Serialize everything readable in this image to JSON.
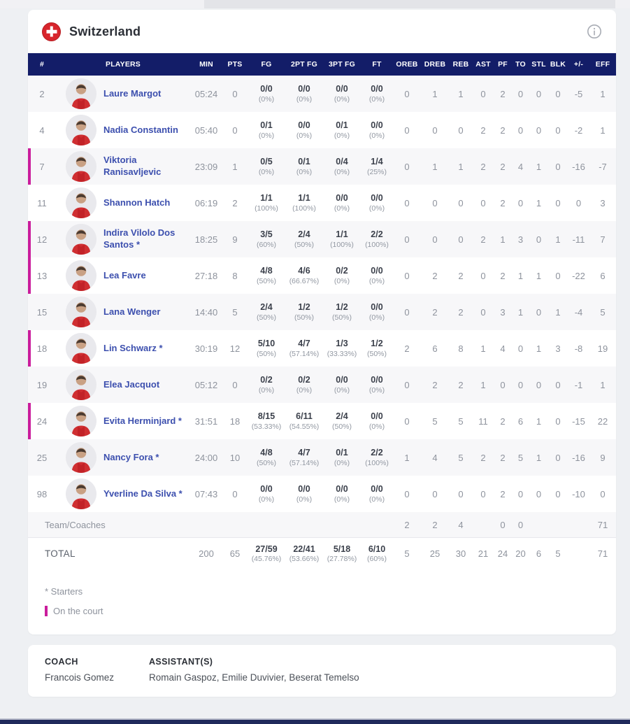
{
  "team_header": {
    "name": "Switzerland",
    "flag_icon": "swiss-flag",
    "info_icon": "info-circle"
  },
  "table": {
    "columns": [
      "#",
      "PLAYERS",
      "MIN",
      "PTS",
      "FG",
      "2PT FG",
      "3PT FG",
      "FT",
      "OREB",
      "DREB",
      "REB",
      "AST",
      "PF",
      "TO",
      "STL",
      "BLK",
      "+/-",
      "EFF"
    ],
    "rows": [
      {
        "num": "2",
        "name": "Laure Margot",
        "starter": false,
        "on_court": false,
        "min": "05:24",
        "pts": "0",
        "fg": "0/0",
        "fg_pct": "(0%)",
        "fg2": "0/0",
        "fg2_pct": "(0%)",
        "fg3": "0/0",
        "fg3_pct": "(0%)",
        "ft": "0/0",
        "ft_pct": "(0%)",
        "oreb": "0",
        "dreb": "1",
        "reb": "1",
        "ast": "0",
        "pf": "2",
        "to": "0",
        "stl": "0",
        "blk": "0",
        "pm": "-5",
        "eff": "1"
      },
      {
        "num": "4",
        "name": "Nadia Constantin",
        "starter": false,
        "on_court": false,
        "min": "05:40",
        "pts": "0",
        "fg": "0/1",
        "fg_pct": "(0%)",
        "fg2": "0/0",
        "fg2_pct": "(0%)",
        "fg3": "0/1",
        "fg3_pct": "(0%)",
        "ft": "0/0",
        "ft_pct": "(0%)",
        "oreb": "0",
        "dreb": "0",
        "reb": "0",
        "ast": "2",
        "pf": "2",
        "to": "0",
        "stl": "0",
        "blk": "0",
        "pm": "-2",
        "eff": "1"
      },
      {
        "num": "7",
        "name": "Viktoria Ranisavljevic",
        "starter": false,
        "on_court": true,
        "min": "23:09",
        "pts": "1",
        "fg": "0/5",
        "fg_pct": "(0%)",
        "fg2": "0/1",
        "fg2_pct": "(0%)",
        "fg3": "0/4",
        "fg3_pct": "(0%)",
        "ft": "1/4",
        "ft_pct": "(25%)",
        "oreb": "0",
        "dreb": "1",
        "reb": "1",
        "ast": "2",
        "pf": "2",
        "to": "4",
        "stl": "1",
        "blk": "0",
        "pm": "-16",
        "eff": "-7"
      },
      {
        "num": "11",
        "name": "Shannon Hatch",
        "starter": false,
        "on_court": false,
        "min": "06:19",
        "pts": "2",
        "fg": "1/1",
        "fg_pct": "(100%)",
        "fg2": "1/1",
        "fg2_pct": "(100%)",
        "fg3": "0/0",
        "fg3_pct": "(0%)",
        "ft": "0/0",
        "ft_pct": "(0%)",
        "oreb": "0",
        "dreb": "0",
        "reb": "0",
        "ast": "0",
        "pf": "2",
        "to": "0",
        "stl": "1",
        "blk": "0",
        "pm": "0",
        "eff": "3"
      },
      {
        "num": "12",
        "name": "Indira Vilolo Dos Santos",
        "starter": true,
        "on_court": true,
        "min": "18:25",
        "pts": "9",
        "fg": "3/5",
        "fg_pct": "(60%)",
        "fg2": "2/4",
        "fg2_pct": "(50%)",
        "fg3": "1/1",
        "fg3_pct": "(100%)",
        "ft": "2/2",
        "ft_pct": "(100%)",
        "oreb": "0",
        "dreb": "0",
        "reb": "0",
        "ast": "2",
        "pf": "1",
        "to": "3",
        "stl": "0",
        "blk": "1",
        "pm": "-11",
        "eff": "7"
      },
      {
        "num": "13",
        "name": "Lea Favre",
        "starter": false,
        "on_court": true,
        "min": "27:18",
        "pts": "8",
        "fg": "4/8",
        "fg_pct": "(50%)",
        "fg2": "4/6",
        "fg2_pct": "(66.67%)",
        "fg3": "0/2",
        "fg3_pct": "(0%)",
        "ft": "0/0",
        "ft_pct": "(0%)",
        "oreb": "0",
        "dreb": "2",
        "reb": "2",
        "ast": "0",
        "pf": "2",
        "to": "1",
        "stl": "1",
        "blk": "0",
        "pm": "-22",
        "eff": "6"
      },
      {
        "num": "15",
        "name": "Lana Wenger",
        "starter": false,
        "on_court": false,
        "min": "14:40",
        "pts": "5",
        "fg": "2/4",
        "fg_pct": "(50%)",
        "fg2": "1/2",
        "fg2_pct": "(50%)",
        "fg3": "1/2",
        "fg3_pct": "(50%)",
        "ft": "0/0",
        "ft_pct": "(0%)",
        "oreb": "0",
        "dreb": "2",
        "reb": "2",
        "ast": "0",
        "pf": "3",
        "to": "1",
        "stl": "0",
        "blk": "1",
        "pm": "-4",
        "eff": "5"
      },
      {
        "num": "18",
        "name": "Lin Schwarz",
        "starter": true,
        "on_court": true,
        "min": "30:19",
        "pts": "12",
        "fg": "5/10",
        "fg_pct": "(50%)",
        "fg2": "4/7",
        "fg2_pct": "(57.14%)",
        "fg3": "1/3",
        "fg3_pct": "(33.33%)",
        "ft": "1/2",
        "ft_pct": "(50%)",
        "oreb": "2",
        "dreb": "6",
        "reb": "8",
        "ast": "1",
        "pf": "4",
        "to": "0",
        "stl": "1",
        "blk": "3",
        "pm": "-8",
        "eff": "19"
      },
      {
        "num": "19",
        "name": "Elea Jacquot",
        "starter": false,
        "on_court": false,
        "min": "05:12",
        "pts": "0",
        "fg": "0/2",
        "fg_pct": "(0%)",
        "fg2": "0/2",
        "fg2_pct": "(0%)",
        "fg3": "0/0",
        "fg3_pct": "(0%)",
        "ft": "0/0",
        "ft_pct": "(0%)",
        "oreb": "0",
        "dreb": "2",
        "reb": "2",
        "ast": "1",
        "pf": "0",
        "to": "0",
        "stl": "0",
        "blk": "0",
        "pm": "-1",
        "eff": "1"
      },
      {
        "num": "24",
        "name": "Evita Herminjard",
        "starter": true,
        "on_court": true,
        "min": "31:51",
        "pts": "18",
        "fg": "8/15",
        "fg_pct": "(53.33%)",
        "fg2": "6/11",
        "fg2_pct": "(54.55%)",
        "fg3": "2/4",
        "fg3_pct": "(50%)",
        "ft": "0/0",
        "ft_pct": "(0%)",
        "oreb": "0",
        "dreb": "5",
        "reb": "5",
        "ast": "11",
        "pf": "2",
        "to": "6",
        "stl": "1",
        "blk": "0",
        "pm": "-15",
        "eff": "22"
      },
      {
        "num": "25",
        "name": "Nancy Fora",
        "starter": true,
        "on_court": false,
        "min": "24:00",
        "pts": "10",
        "fg": "4/8",
        "fg_pct": "(50%)",
        "fg2": "4/7",
        "fg2_pct": "(57.14%)",
        "fg3": "0/1",
        "fg3_pct": "(0%)",
        "ft": "2/2",
        "ft_pct": "(100%)",
        "oreb": "1",
        "dreb": "4",
        "reb": "5",
        "ast": "2",
        "pf": "2",
        "to": "5",
        "stl": "1",
        "blk": "0",
        "pm": "-16",
        "eff": "9"
      },
      {
        "num": "98",
        "name": "Yverline Da Silva",
        "starter": true,
        "on_court": false,
        "min": "07:43",
        "pts": "0",
        "fg": "0/0",
        "fg_pct": "(0%)",
        "fg2": "0/0",
        "fg2_pct": "(0%)",
        "fg3": "0/0",
        "fg3_pct": "(0%)",
        "ft": "0/0",
        "ft_pct": "(0%)",
        "oreb": "0",
        "dreb": "0",
        "reb": "0",
        "ast": "0",
        "pf": "2",
        "to": "0",
        "stl": "0",
        "blk": "0",
        "pm": "-10",
        "eff": "0"
      }
    ],
    "team_row": {
      "label": "Team/Coaches",
      "oreb": "2",
      "dreb": "2",
      "reb": "4",
      "ast": "",
      "pf": "0",
      "to": "0",
      "stl": "",
      "blk": "",
      "pm": "",
      "eff": "71"
    },
    "total_row": {
      "label": "TOTAL",
      "min": "200",
      "pts": "65",
      "fg": "27/59",
      "fg_pct": "(45.76%)",
      "fg2": "22/41",
      "fg2_pct": "(53.66%)",
      "fg3": "5/18",
      "fg3_pct": "(27.78%)",
      "ft": "6/10",
      "ft_pct": "(60%)",
      "oreb": "5",
      "dreb": "25",
      "reb": "30",
      "ast": "21",
      "pf": "24",
      "to": "20",
      "stl": "6",
      "blk": "5",
      "pm": "",
      "eff": "71"
    }
  },
  "legend": {
    "starters": "* Starters",
    "on_court": "On the court"
  },
  "staff": {
    "coach_label": "COACH",
    "coach_name": "Francois Gomez",
    "assistants_label": "ASSISTANT(S)",
    "assistants_names": "Romain Gaspoz, Emilie Duvivier, Beserat Temelso"
  },
  "colors": {
    "header_navy": "#131d68",
    "on_court_pink": "#ca1d9c",
    "player_link_blue": "#3c4fae",
    "flag_red": "#d8252c",
    "row_alt": "#f7f7f9",
    "page_bg": "#eef0f3",
    "bottom_bar": "#202a5c"
  }
}
